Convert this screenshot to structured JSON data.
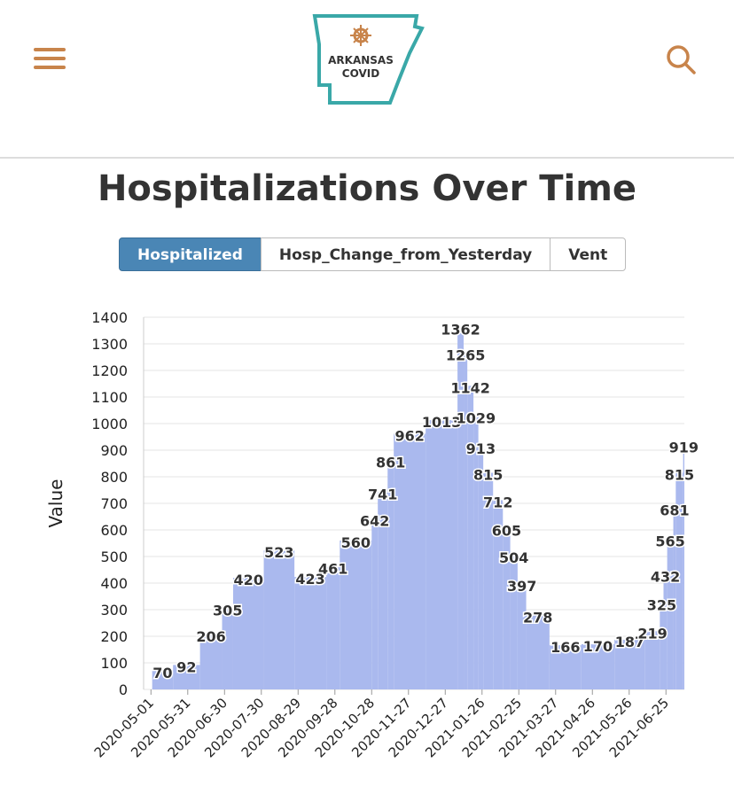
{
  "header": {
    "logo_text": [
      "ARKANSAS",
      "COVID"
    ]
  },
  "title": "Hospitalizations Over Time",
  "tabs": [
    "Hospitalized",
    "Hosp_Change_from_Yesterday",
    "Vent"
  ],
  "chart_data": {
    "type": "bar",
    "color": "#aab9ee",
    "ylabel": "Value",
    "x": [
      "2020-05-02",
      "2020-05-19",
      "2020-06-10",
      "2020-06-28",
      "2020-07-07",
      "2020-08-01",
      "2020-08-26",
      "2020-09-21",
      "2020-10-02",
      "2020-10-28",
      "2020-11-02",
      "2020-11-10",
      "2020-11-15",
      "2020-12-11",
      "2021-01-06",
      "2021-01-11",
      "2021-01-14",
      "2021-01-19",
      "2021-01-23",
      "2021-01-27",
      "2021-02-04",
      "2021-02-12",
      "2021-02-18",
      "2021-02-24",
      "2021-03-03",
      "2021-03-22",
      "2021-04-17",
      "2021-05-14",
      "2021-06-08",
      "2021-06-20",
      "2021-06-23",
      "2021-06-26",
      "2021-07-01",
      "2021-07-03",
      "2021-07-09"
    ],
    "values": [
      70,
      92,
      206,
      305,
      420,
      523,
      423,
      461,
      560,
      642,
      741,
      861,
      962,
      1013,
      1362,
      1265,
      1142,
      1029,
      913,
      815,
      712,
      605,
      504,
      397,
      278,
      166,
      170,
      187,
      219,
      325,
      432,
      565,
      681,
      815,
      919
    ],
    "xlim": [
      "2020-04-25",
      "2021-07-10"
    ],
    "xticks": [
      "2020-05-01",
      "2020-05-31",
      "2020-06-30",
      "2020-07-30",
      "2020-08-29",
      "2020-09-28",
      "2020-10-28",
      "2020-11-27",
      "2020-12-27",
      "2021-01-26",
      "2021-02-25",
      "2021-03-27",
      "2021-04-26",
      "2021-05-26",
      "2021-06-25"
    ],
    "ylim": [
      0,
      1400
    ],
    "yticks": [
      0,
      100,
      200,
      300,
      400,
      500,
      600,
      700,
      800,
      900,
      1000,
      1100,
      1200,
      1300,
      1400
    ],
    "grid": true
  }
}
